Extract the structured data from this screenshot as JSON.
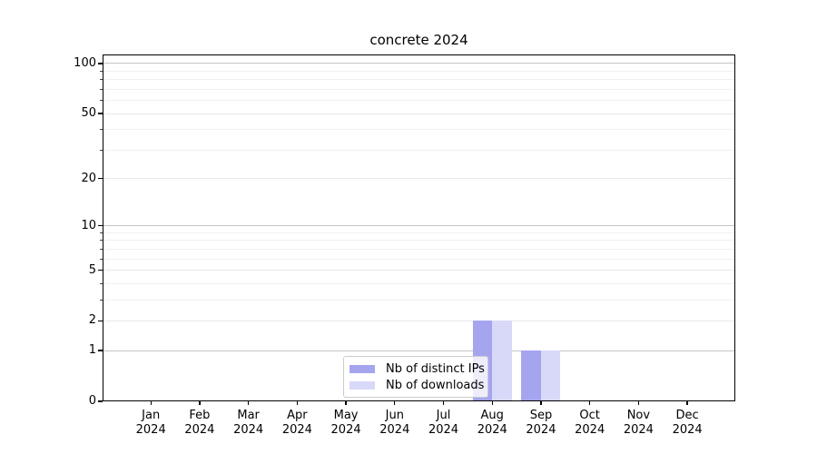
{
  "chart_data": {
    "type": "bar",
    "title": "concrete 2024",
    "xlabel": "",
    "ylabel": "",
    "year": "2024",
    "categories": [
      "Jan",
      "Feb",
      "Mar",
      "Apr",
      "May",
      "Jun",
      "Jul",
      "Aug",
      "Sep",
      "Oct",
      "Nov",
      "Dec"
    ],
    "series": [
      {
        "name": "Nb of distinct IPs",
        "color": "#a5a5ef",
        "values": [
          0,
          0,
          0,
          0,
          0,
          0,
          0,
          2,
          1,
          0,
          0,
          0
        ]
      },
      {
        "name": "Nb of downloads",
        "color": "#d8d8f8",
        "values": [
          0,
          0,
          0,
          0,
          0,
          0,
          0,
          2,
          1,
          0,
          0,
          0
        ]
      }
    ],
    "yscale": "log1p",
    "yticks_major": [
      0,
      1,
      2,
      5,
      10,
      20,
      50,
      100
    ],
    "yticks_minor": [
      3,
      4,
      6,
      7,
      8,
      9,
      30,
      40,
      60,
      70,
      80,
      90
    ],
    "ylim": [
      0,
      113
    ],
    "grid": "horizontal",
    "legend_position": "lower-center"
  }
}
